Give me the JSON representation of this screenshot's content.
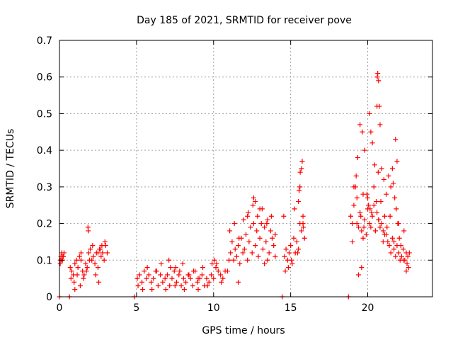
{
  "chart_data": {
    "type": "scatter",
    "title": "Day 185 of 2021, SRMTID for receiver pove",
    "xlabel": "GPS time / hours",
    "ylabel": "SRMTID / TECUs",
    "xlim": [
      0,
      24.2
    ],
    "ylim": [
      0,
      0.7
    ],
    "xticks": [
      0,
      5,
      10,
      15,
      20
    ],
    "xtick_labels": [
      "0",
      "5",
      "10",
      "15",
      "20"
    ],
    "yticks": [
      0,
      0.1,
      0.2,
      0.3,
      0.4,
      0.5,
      0.6,
      0.7
    ],
    "ytick_labels": [
      "0",
      "0.1",
      "0.2",
      "0.3",
      "0.4",
      "0.5",
      "0.6",
      "0.7"
    ],
    "grid": true,
    "marker": "+",
    "series": [
      {
        "name": "SRMTID",
        "color": "#ff0000",
        "x": [
          0.05,
          0.1,
          0.15,
          0.2,
          0.25,
          0.3,
          0.05,
          0.12,
          0.22,
          0.7,
          0.8,
          0.9,
          1.0,
          1.1,
          1.2,
          1.3,
          1.4,
          1.5,
          1.6,
          1.7,
          1.8,
          1.9,
          2.0,
          2.1,
          2.2,
          2.3,
          2.4,
          2.5,
          2.6,
          2.7,
          2.8,
          2.9,
          3.0,
          3.1,
          0.75,
          0.95,
          1.15,
          1.35,
          1.55,
          1.75,
          1.95,
          2.15,
          2.35,
          2.55,
          2.75,
          2.95,
          1.85,
          1.87,
          2.5,
          2.65,
          1.0,
          1.4,
          5.05,
          5.2,
          5.35,
          5.5,
          5.65,
          5.8,
          5.95,
          6.1,
          6.25,
          6.4,
          6.55,
          6.7,
          6.85,
          7.0,
          7.15,
          7.3,
          7.45,
          7.6,
          7.75,
          7.9,
          8.05,
          8.2,
          8.35,
          8.5,
          8.65,
          8.8,
          8.95,
          9.1,
          9.25,
          9.4,
          9.55,
          9.7,
          9.85,
          10.0,
          10.15,
          10.3,
          10.45,
          10.6,
          10.75,
          5.1,
          5.4,
          5.7,
          6.0,
          6.3,
          6.6,
          6.9,
          7.2,
          7.5,
          7.8,
          8.1,
          8.4,
          8.7,
          9.0,
          9.3,
          9.6,
          9.9,
          10.2,
          10.5,
          7.1,
          7.55,
          8.0,
          9.0,
          10.05,
          10.9,
          11.0,
          11.1,
          11.2,
          11.3,
          11.4,
          11.5,
          11.6,
          11.7,
          11.8,
          11.9,
          12.0,
          12.1,
          12.2,
          12.3,
          12.4,
          12.5,
          12.6,
          12.7,
          12.8,
          12.9,
          13.0,
          13.1,
          13.2,
          13.3,
          13.4,
          13.5,
          13.6,
          13.7,
          13.8,
          13.9,
          14.0,
          11.05,
          11.35,
          11.65,
          11.95,
          12.25,
          12.55,
          12.85,
          13.15,
          13.45,
          13.75,
          12.6,
          12.7,
          13.0,
          13.3,
          13.5,
          14.0,
          12.2,
          11.6,
          14.55,
          14.6,
          14.7,
          14.8,
          14.9,
          15.0,
          15.1,
          15.2,
          15.3,
          15.4,
          15.5,
          15.6,
          15.7,
          15.8,
          15.9,
          14.65,
          14.85,
          15.05,
          15.25,
          15.45,
          15.5,
          15.55,
          15.6,
          15.62,
          15.7,
          15.75,
          15.8,
          15.82,
          18.9,
          19.0,
          19.1,
          19.2,
          19.3,
          19.4,
          19.5,
          19.6,
          19.7,
          19.8,
          19.9,
          20.0,
          20.1,
          20.2,
          20.3,
          20.4,
          20.5,
          20.6,
          20.7,
          20.8,
          20.9,
          21.0,
          21.1,
          21.2,
          21.3,
          21.4,
          21.5,
          21.6,
          21.7,
          21.8,
          21.9,
          22.0,
          22.1,
          22.2,
          22.3,
          22.4,
          22.5,
          22.6,
          22.7,
          19.1,
          19.25,
          19.35,
          19.5,
          19.65,
          19.8,
          19.95,
          20.1,
          20.2,
          20.3,
          20.45,
          20.6,
          20.62,
          20.65,
          20.7,
          20.75,
          20.8,
          20.9,
          21.05,
          21.2,
          21.35,
          21.5,
          21.6,
          21.75,
          21.8,
          21.9,
          22.0,
          22.05,
          19.4,
          19.6,
          19.7,
          20.05,
          20.15,
          20.4,
          20.55,
          20.68,
          21.1,
          21.7,
          21.85,
          22.3,
          22.5,
          22.65,
          19.0,
          19.3,
          19.55,
          19.75,
          20.0,
          20.25,
          20.5,
          20.72,
          20.85,
          21.0,
          21.25,
          21.45,
          21.65,
          21.95,
          22.15,
          22.35,
          22.55,
          0.0,
          0.65,
          4.85,
          14.45,
          18.75
        ],
        "y": [
          0.1,
          0.11,
          0.12,
          0.1,
          0.11,
          0.12,
          0.09,
          0.1,
          0.11,
          0.08,
          0.07,
          0.06,
          0.09,
          0.1,
          0.08,
          0.11,
          0.12,
          0.07,
          0.06,
          0.09,
          0.08,
          0.12,
          0.13,
          0.1,
          0.11,
          0.09,
          0.12,
          0.08,
          0.13,
          0.11,
          0.12,
          0.1,
          0.14,
          0.12,
          0.05,
          0.04,
          0.06,
          0.03,
          0.05,
          0.07,
          0.1,
          0.14,
          0.06,
          0.04,
          0.14,
          0.15,
          0.19,
          0.18,
          0.12,
          0.13,
          0.02,
          0.1,
          0.05,
          0.06,
          0.04,
          0.07,
          0.05,
          0.06,
          0.04,
          0.05,
          0.07,
          0.03,
          0.06,
          0.04,
          0.05,
          0.06,
          0.03,
          0.05,
          0.07,
          0.04,
          0.06,
          0.03,
          0.05,
          0.04,
          0.06,
          0.05,
          0.03,
          0.07,
          0.04,
          0.05,
          0.06,
          0.03,
          0.05,
          0.04,
          0.06,
          0.05,
          0.08,
          0.07,
          0.06,
          0.05,
          0.07,
          0.03,
          0.02,
          0.08,
          0.02,
          0.07,
          0.09,
          0.02,
          0.08,
          0.03,
          0.07,
          0.02,
          0.06,
          0.07,
          0.02,
          0.08,
          0.03,
          0.09,
          0.09,
          0.04,
          0.1,
          0.08,
          0.09,
          0.05,
          0.1,
          0.07,
          0.1,
          0.12,
          0.15,
          0.1,
          0.13,
          0.11,
          0.14,
          0.09,
          0.16,
          0.12,
          0.13,
          0.17,
          0.1,
          0.15,
          0.19,
          0.12,
          0.2,
          0.14,
          0.18,
          0.11,
          0.16,
          0.2,
          0.13,
          0.19,
          0.15,
          0.21,
          0.12,
          0.18,
          0.16,
          0.14,
          0.17,
          0.18,
          0.2,
          0.16,
          0.21,
          0.23,
          0.25,
          0.22,
          0.24,
          0.2,
          0.22,
          0.27,
          0.26,
          0.24,
          0.09,
          0.1,
          0.11,
          0.22,
          0.04,
          0.22,
          0.11,
          0.13,
          0.1,
          0.12,
          0.14,
          0.09,
          0.16,
          0.12,
          0.15,
          0.13,
          0.2,
          0.18,
          0.22,
          0.16,
          0.07,
          0.08,
          0.1,
          0.24,
          0.12,
          0.26,
          0.29,
          0.3,
          0.34,
          0.35,
          0.37,
          0.2,
          0.19,
          0.22,
          0.2,
          0.25,
          0.3,
          0.27,
          0.19,
          0.23,
          0.18,
          0.28,
          0.21,
          0.17,
          0.24,
          0.2,
          0.19,
          0.22,
          0.25,
          0.18,
          0.23,
          0.21,
          0.19,
          0.2,
          0.18,
          0.22,
          0.17,
          0.15,
          0.14,
          0.12,
          0.16,
          0.13,
          0.11,
          0.14,
          0.12,
          0.1,
          0.11,
          0.13,
          0.1,
          0.12,
          0.11,
          0.12,
          0.3,
          0.33,
          0.38,
          0.47,
          0.45,
          0.4,
          0.28,
          0.5,
          0.45,
          0.42,
          0.36,
          0.52,
          0.6,
          0.61,
          0.59,
          0.52,
          0.47,
          0.35,
          0.32,
          0.28,
          0.33,
          0.3,
          0.35,
          0.27,
          0.43,
          0.37,
          0.2,
          0.16,
          0.06,
          0.08,
          0.16,
          0.25,
          0.24,
          0.3,
          0.26,
          0.34,
          0.17,
          0.15,
          0.24,
          0.1,
          0.07,
          0.08,
          0.15,
          0.2,
          0.22,
          0.19,
          0.27,
          0.23,
          0.18,
          0.21,
          0.26,
          0.15,
          0.19,
          0.22,
          0.31,
          0.2,
          0.14,
          0.18,
          0.09,
          0.0,
          0.0,
          0.0,
          0.0,
          0.0
        ]
      }
    ]
  }
}
